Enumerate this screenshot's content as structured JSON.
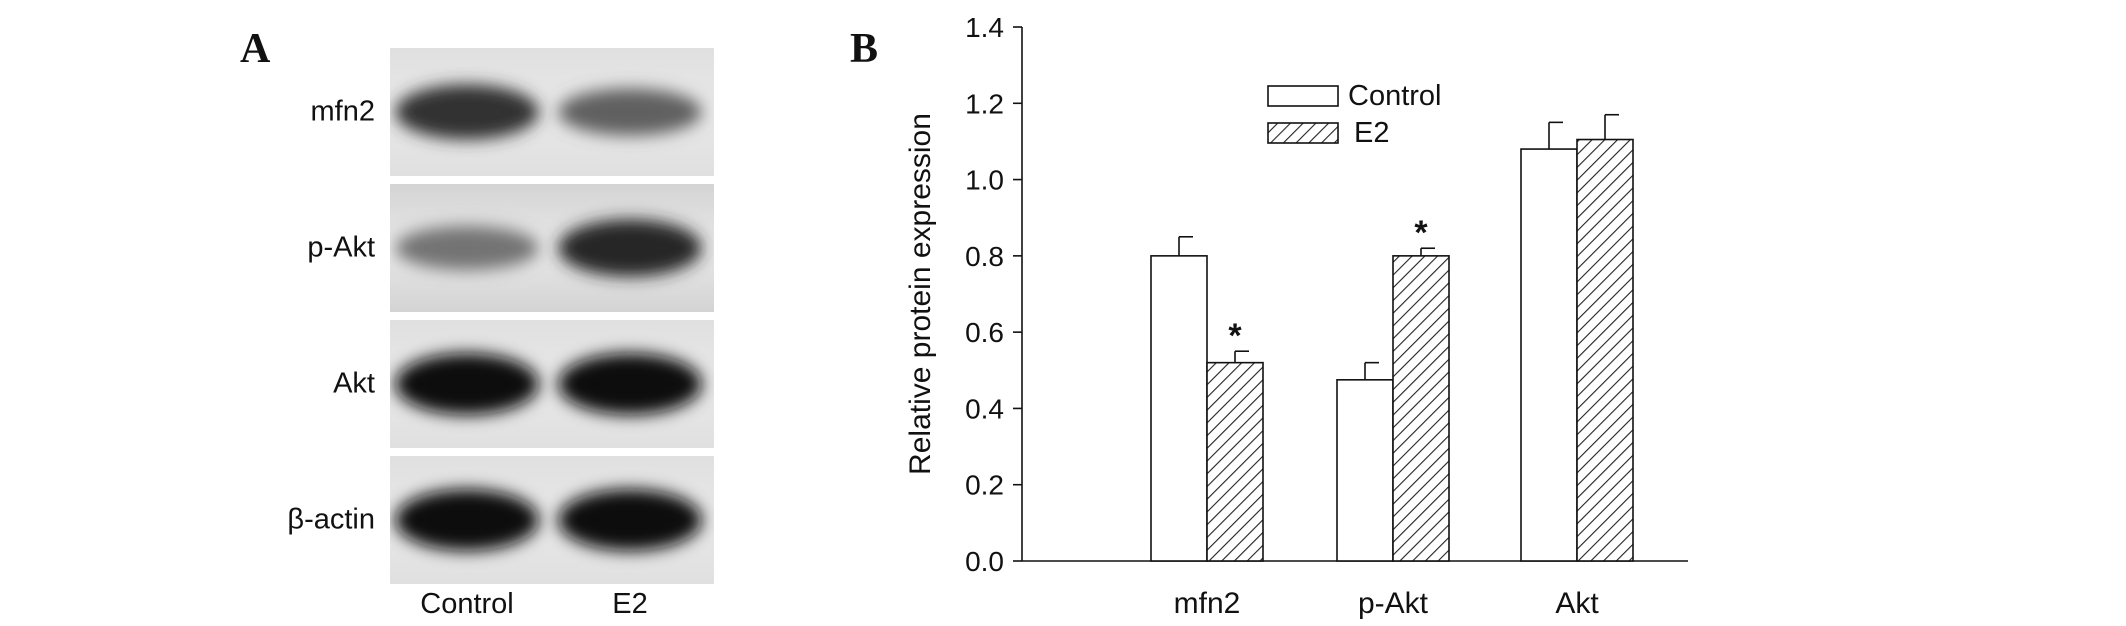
{
  "panel_a": {
    "label": "A",
    "rows": [
      {
        "name": "mfn2",
        "control_intensity": 0.8,
        "e2_intensity": 0.62
      },
      {
        "name": "p-Akt",
        "control_intensity": 0.55,
        "e2_intensity": 0.85
      },
      {
        "name": "Akt",
        "control_intensity": 0.95,
        "e2_intensity": 0.95
      },
      {
        "name": "β-actin",
        "control_intensity": 0.95,
        "e2_intensity": 0.95
      }
    ],
    "lanes": [
      "Control",
      "E2"
    ]
  },
  "panel_b": {
    "label": "B"
  },
  "chart_data": {
    "type": "bar",
    "categories": [
      "mfn2",
      "p-Akt",
      "Akt"
    ],
    "series": [
      {
        "name": "Control",
        "values": [
          0.8,
          0.475,
          1.08
        ],
        "errors": [
          0.05,
          0.045,
          0.07
        ],
        "style": "open",
        "significant": [
          false,
          false,
          false
        ]
      },
      {
        "name": "E2",
        "values": [
          0.52,
          0.8,
          1.105
        ],
        "errors": [
          0.03,
          0.02,
          0.065
        ],
        "style": "hatched",
        "significant": [
          true,
          true,
          false
        ]
      }
    ],
    "significance_marker": "*",
    "ylabel": "Relative protein expression",
    "xlabel": "",
    "ylim": [
      0.0,
      1.4
    ],
    "yticks": [
      "0.0",
      "0.2",
      "0.4",
      "0.6",
      "0.8",
      "1.0",
      "1.2",
      "1.4"
    ],
    "grid": false,
    "legend_position": "top-center"
  }
}
